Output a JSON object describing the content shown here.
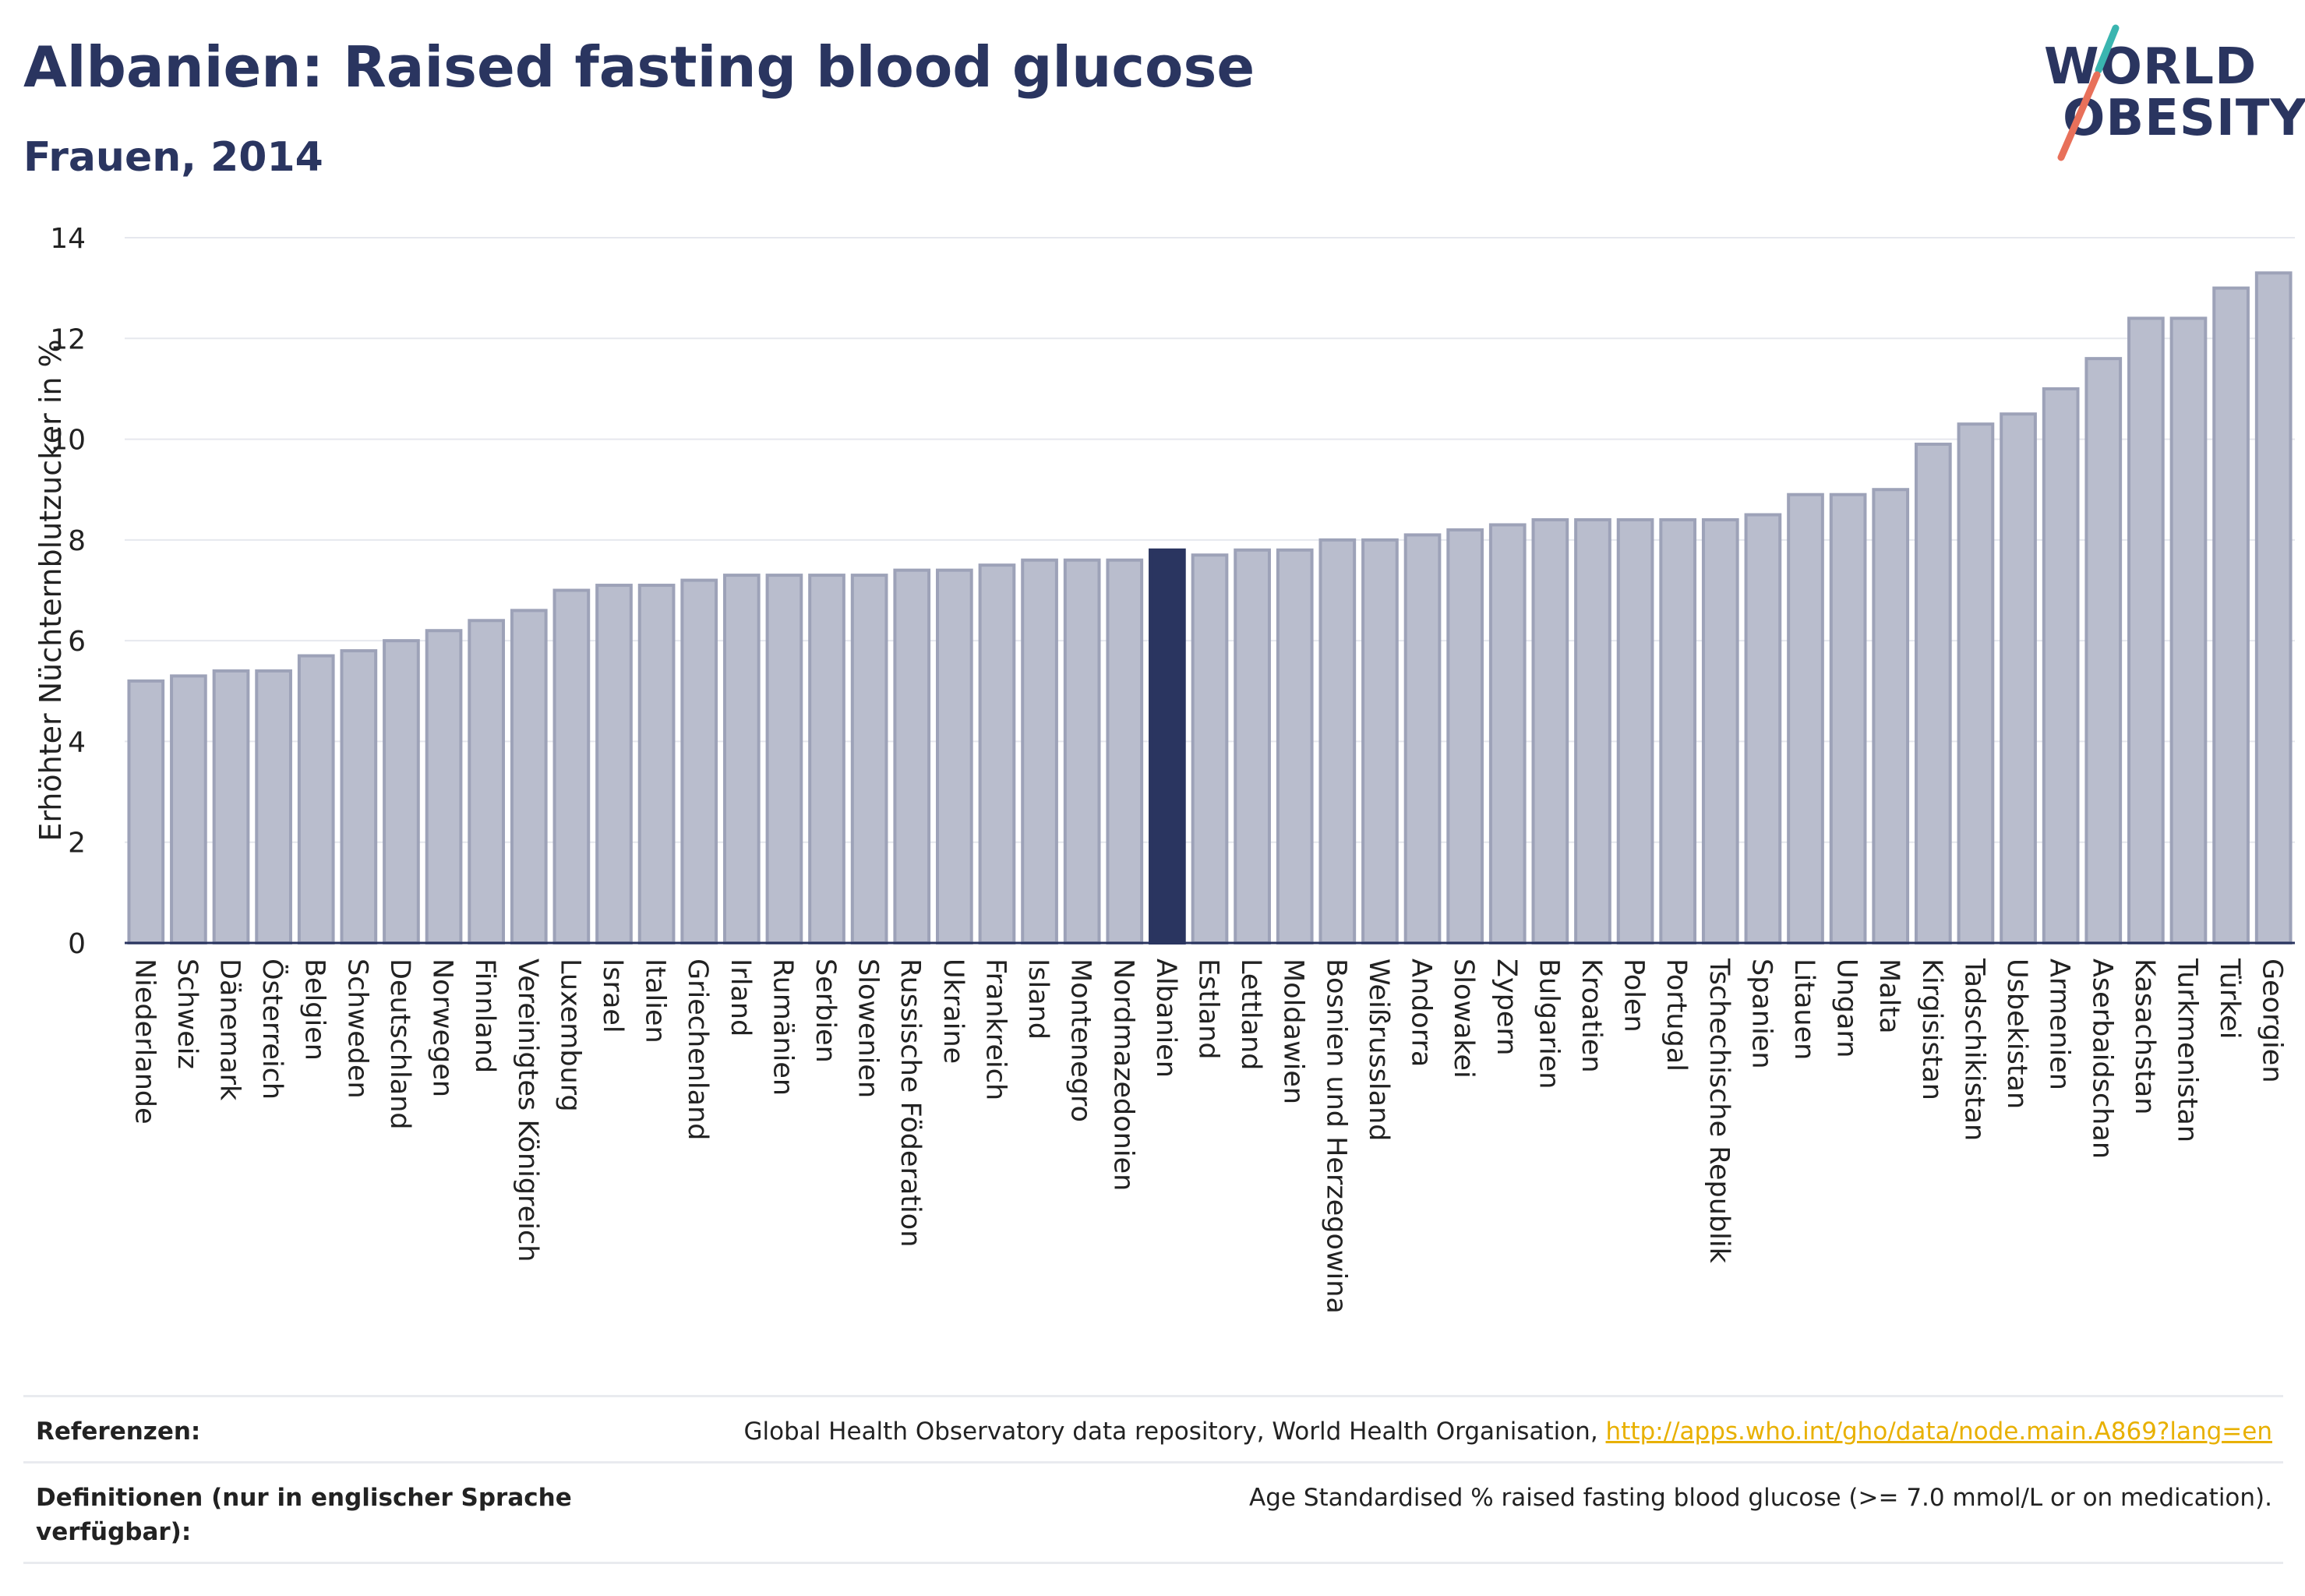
{
  "header": {
    "title": "Albanien: Raised fasting blood glucose",
    "subtitle": "Frauen, 2014"
  },
  "logo": {
    "line1": "WORLD",
    "line2": "OBESITY"
  },
  "colors": {
    "bar": "#b9bdcd",
    "bar_border": "#9da2b8",
    "highlight": "#2a3560",
    "text": "#2a3560"
  },
  "chart_data": {
    "type": "bar",
    "title": "Albanien: Raised fasting blood glucose",
    "subtitle": "Frauen, 2014",
    "xlabel": "",
    "ylabel": "Erhöhter Nüchternblutzucker in %",
    "ylim": [
      0,
      14
    ],
    "yticks": [
      0,
      2,
      4,
      6,
      8,
      10,
      12,
      14
    ],
    "grid": true,
    "highlight": "Albanien",
    "categories": [
      "Niederlande",
      "Schweiz",
      "Dänemark",
      "Österreich",
      "Belgien",
      "Schweden",
      "Deutschland",
      "Norwegen",
      "Finnland",
      "Vereinigtes Königreich",
      "Luxemburg",
      "Israel",
      "Italien",
      "Griechenland",
      "Irland",
      "Rumänien",
      "Serbien",
      "Slowenien",
      "Russische Föderation",
      "Ukraine",
      "Frankreich",
      "Island",
      "Montenegro",
      "Nordmazedonien",
      "Albanien",
      "Estland",
      "Lettland",
      "Moldawien",
      "Bosnien und Herzegowina",
      "Weißrussland",
      "Andorra",
      "Slowakei",
      "Zypern",
      "Bulgarien",
      "Kroatien",
      "Polen",
      "Portugal",
      "Tschechische Republik",
      "Spanien",
      "Litauen",
      "Ungarn",
      "Malta",
      "Kirgisistan",
      "Tadschikistan",
      "Usbekistan",
      "Armenien",
      "Aserbaidschan",
      "Kasachstan",
      "Turkmenistan",
      "Türkei",
      "Georgien"
    ],
    "values": [
      5.2,
      5.3,
      5.4,
      5.4,
      5.7,
      5.8,
      6.0,
      6.2,
      6.4,
      6.6,
      7.0,
      7.1,
      7.1,
      7.2,
      7.3,
      7.3,
      7.3,
      7.3,
      7.4,
      7.4,
      7.5,
      7.6,
      7.6,
      7.6,
      7.8,
      7.7,
      7.8,
      7.8,
      8.0,
      8.0,
      8.1,
      8.2,
      8.3,
      8.4,
      8.4,
      8.4,
      8.4,
      8.4,
      8.5,
      8.9,
      8.9,
      9.0,
      9.9,
      10.3,
      10.5,
      11.0,
      11.6,
      12.4,
      12.4,
      13.0,
      13.3
    ]
  },
  "footer": {
    "references_label": "Referenzen:",
    "references_text": "Global Health Observatory data repository, World Health Organisation, ",
    "references_link": "http://apps.who.int/gho/data/node.main.A869?lang=en",
    "definitions_label": "Definitionen (nur in englischer Sprache verfügbar):",
    "definitions_text": "Age Standardised % raised fasting blood glucose (>= 7.0 mmol/L or on medication)."
  }
}
